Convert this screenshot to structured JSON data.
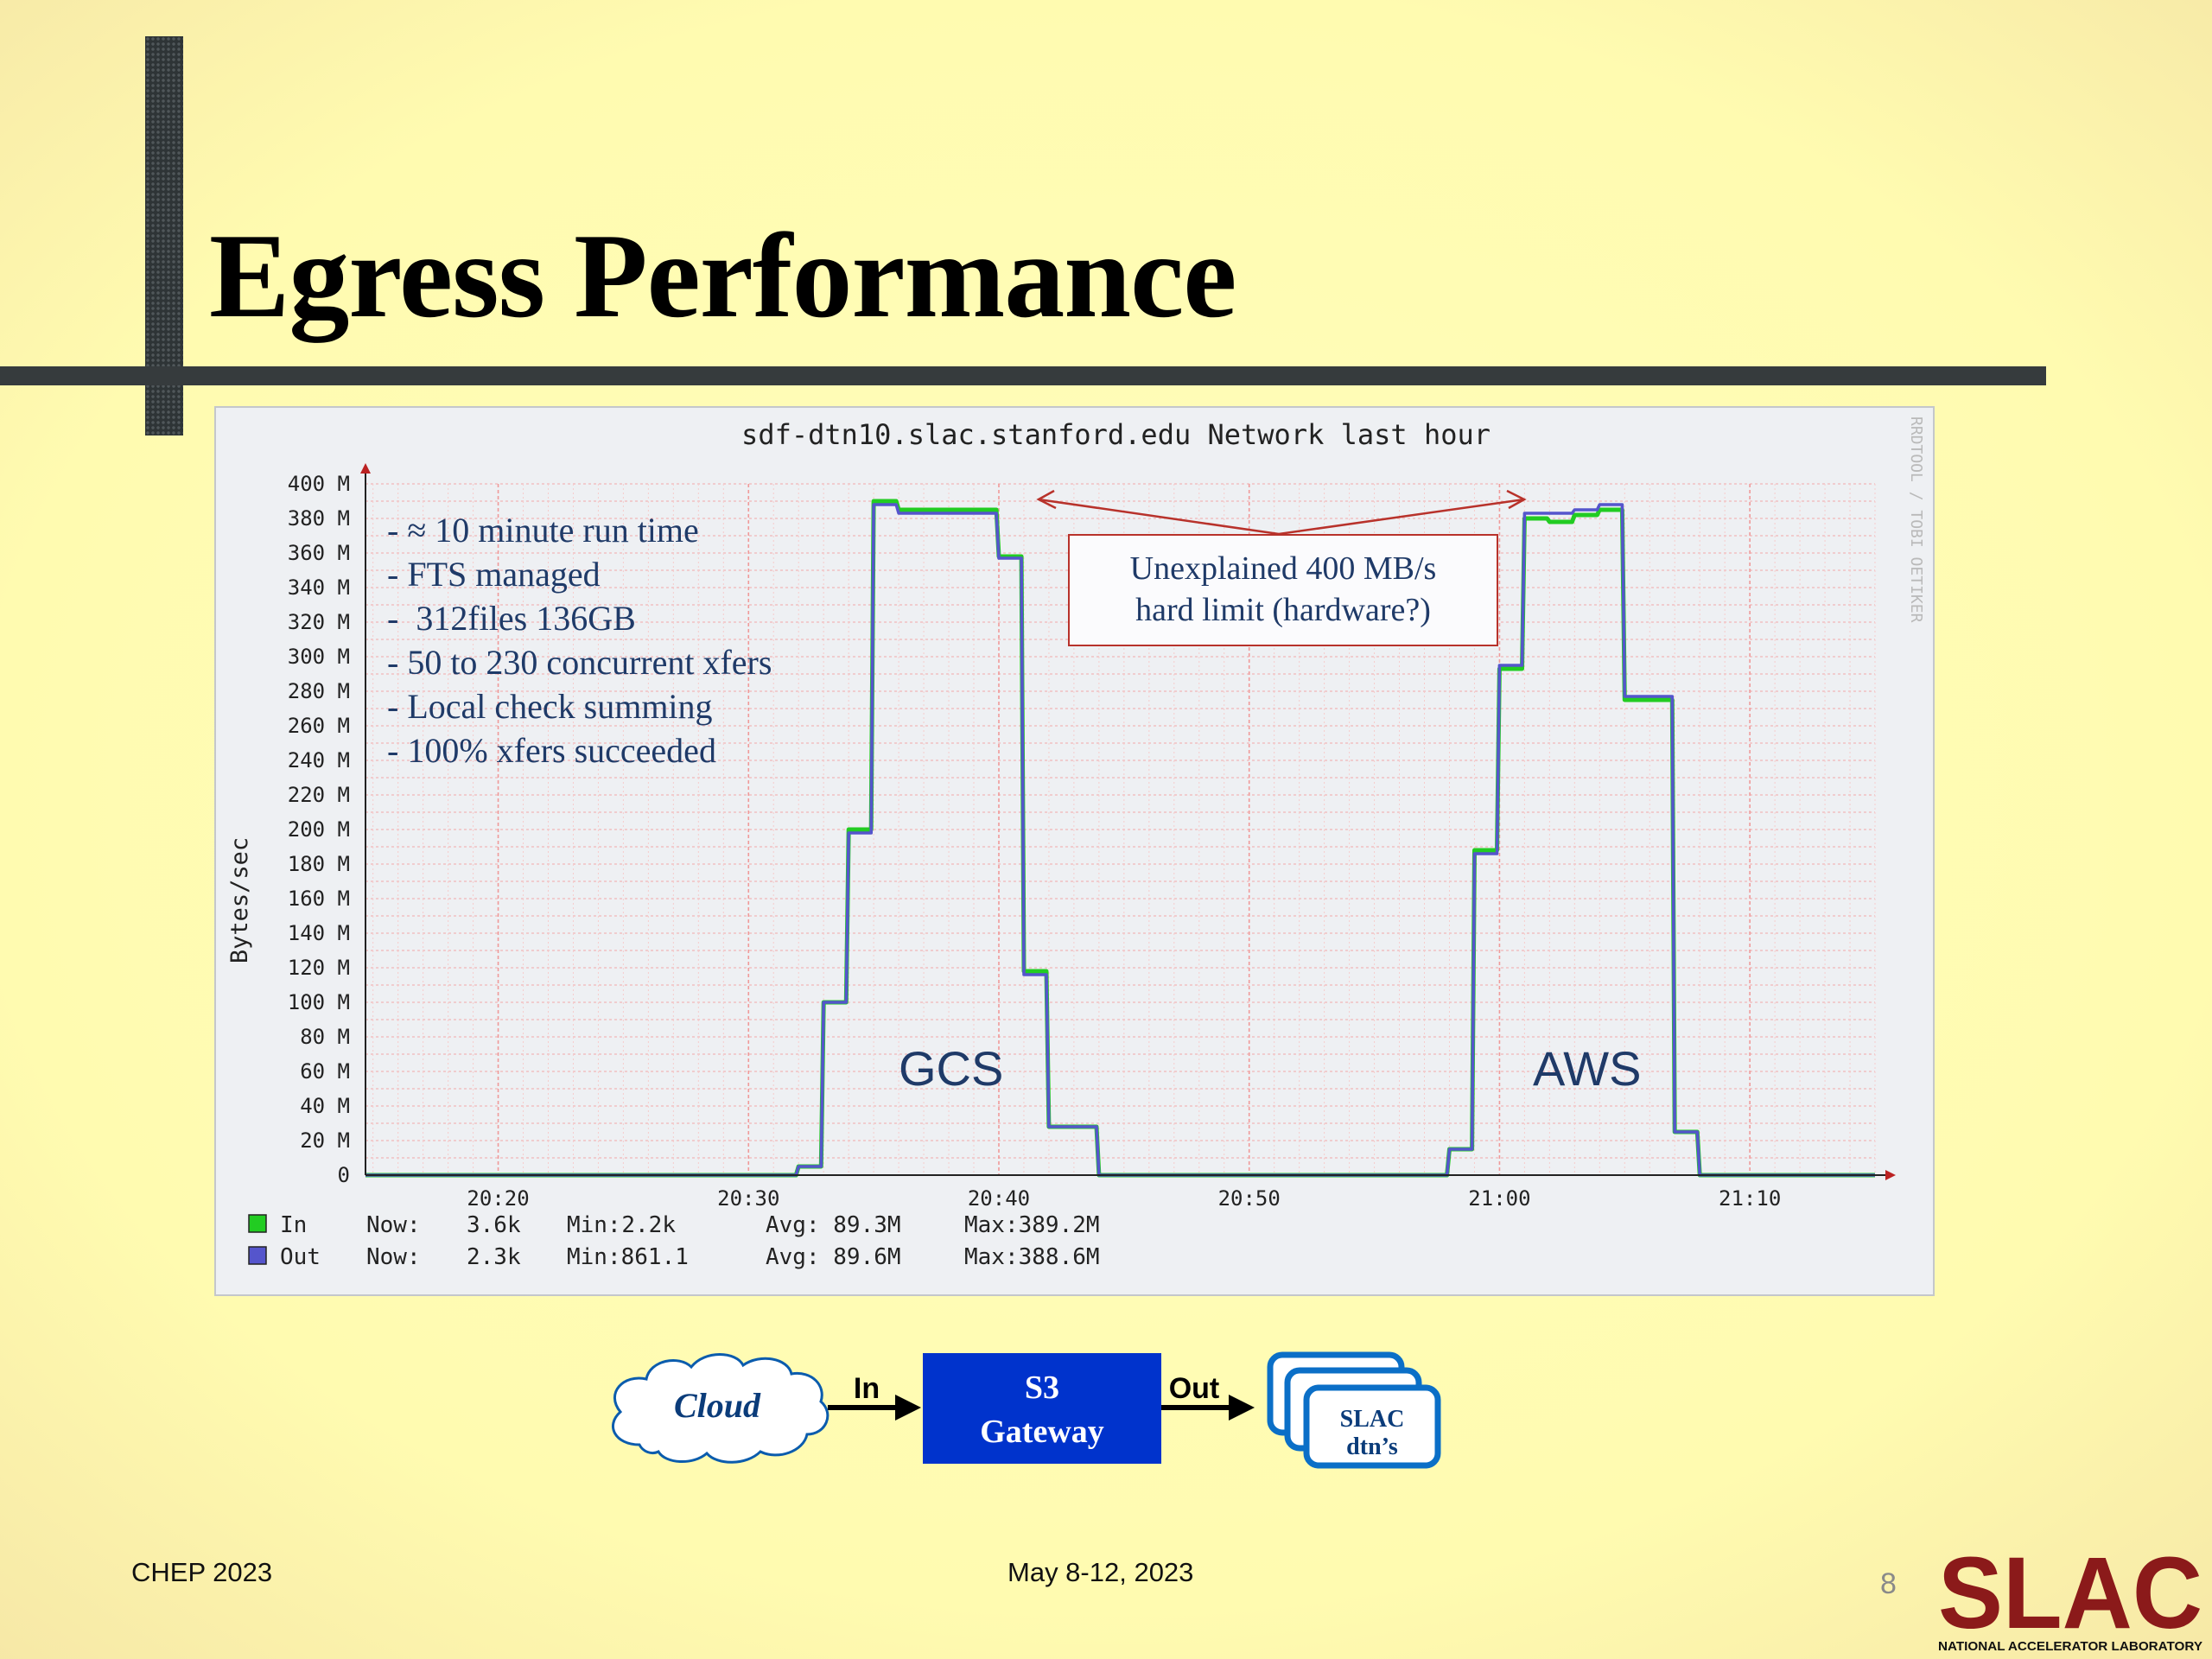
{
  "slide": {
    "title": "Egress Performance",
    "page_number": "8",
    "footer_left": "CHEP 2023",
    "footer_center": "May 8-12, 2023",
    "logo_text": "SLAC",
    "logo_subtext": "NATIONAL ACCELERATOR LABORATORY",
    "colors": {
      "background": "#fffbb0",
      "bar": "#363b3d",
      "annotation_text": "#1f3a68",
      "box_border": "#b8322b",
      "in_series": "#22cc22",
      "out_series": "#5555cc",
      "gateway": "#0033cc",
      "logo": "#8b1a1a"
    }
  },
  "annotations": {
    "notes": [
      "- ≈ 10 minute run time",
      "- FTS managed",
      "-  312files 136GB",
      "- 50 to 230 concurrent xfers",
      "- Local check summing",
      "- 100% xfers succeeded"
    ],
    "limit_line1": "Unexplained 400 MB/s",
    "limit_line2": "hard limit (hardware?)",
    "gcs_label": "GCS",
    "aws_label": "AWS"
  },
  "chart_data": {
    "type": "line",
    "title": "sdf-dtn10.slac.stanford.edu Network last hour",
    "ylabel": "Bytes/sec",
    "watermark": "RRDTOOL / TOBI OETIKER",
    "ylim": [
      0,
      400
    ],
    "y_unit": "M",
    "y_ticks": [
      "0",
      "20 M",
      "40 M",
      "60 M",
      "80 M",
      "100 M",
      "120 M",
      "140 M",
      "160 M",
      "180 M",
      "200 M",
      "220 M",
      "240 M",
      "260 M",
      "280 M",
      "300 M",
      "320 M",
      "340 M",
      "360 M",
      "380 M",
      "400 M"
    ],
    "x_ticks": [
      "20:20",
      "20:30",
      "20:40",
      "20:50",
      "21:00",
      "21:10"
    ],
    "xlim_minutes_after_2010": [
      4.7,
      65
    ],
    "x_tick_minutes_after_2010": [
      10,
      20,
      30,
      40,
      50,
      60
    ],
    "grid": true,
    "series": [
      {
        "name": "In",
        "x_minutes_after_2010": [
          4.7,
          21.9,
          22.0,
          22.9,
          23.0,
          23.9,
          24.0,
          24.9,
          25.0,
          25.9,
          26.0,
          29.9,
          30.0,
          30.9,
          31.0,
          31.9,
          32.0,
          33.9,
          34.0,
          47.9,
          48.0,
          48.9,
          49.0,
          49.9,
          50.0,
          50.9,
          51.0,
          51.9,
          52.0,
          52.9,
          53.0,
          53.9,
          54.0,
          54.9,
          55.0,
          56.9,
          57.0,
          57.9,
          58.0,
          65
        ],
        "y": [
          0,
          0,
          5,
          5,
          100,
          100,
          200,
          200,
          390,
          390,
          385,
          385,
          358,
          358,
          118,
          118,
          28,
          28,
          0,
          0,
          15,
          15,
          188,
          188,
          293,
          293,
          380,
          380,
          378,
          378,
          382,
          382,
          385,
          385,
          275,
          275,
          25,
          25,
          0,
          0
        ]
      },
      {
        "name": "Out",
        "x_minutes_after_2010": [
          4.7,
          21.9,
          22.0,
          22.9,
          23.0,
          23.9,
          24.0,
          24.9,
          25.0,
          25.9,
          26.0,
          29.9,
          30.0,
          30.9,
          31.0,
          31.9,
          32.0,
          33.9,
          34.0,
          47.9,
          48.0,
          48.9,
          49.0,
          49.9,
          50.0,
          50.9,
          51.0,
          51.9,
          52.0,
          52.9,
          53.0,
          53.9,
          54.0,
          54.9,
          55.0,
          56.9,
          57.0,
          57.9,
          58.0,
          65
        ],
        "y": [
          0,
          0,
          5,
          5,
          100,
          100,
          198,
          198,
          388,
          388,
          383,
          383,
          357,
          357,
          116,
          116,
          28,
          28,
          0,
          0,
          15,
          15,
          186,
          186,
          295,
          295,
          383,
          383,
          383,
          383,
          385,
          385,
          388,
          388,
          277,
          277,
          25,
          25,
          0,
          0
        ]
      }
    ],
    "legend": {
      "placement": "bottom-left",
      "rows": [
        {
          "name": "In",
          "now": "Now:",
          "now_val": "3.6k",
          "min": "Min:",
          "min_val": "2.2k",
          "avg": "Avg: 89.3M",
          "max": "Max:389.2M"
        },
        {
          "name": "Out",
          "now": "Now:",
          "now_val": "2.3k",
          "min": "Min:861.1",
          "min_val": "",
          "avg": "Avg: 89.6M",
          "max": "Max:388.6M"
        }
      ]
    }
  },
  "flow": {
    "cloud": "Cloud",
    "in": "In",
    "gateway_line1": "S3",
    "gateway_line2": "Gateway",
    "out": "Out",
    "dtn_line1": "SLAC",
    "dtn_line2": "dtn’s"
  }
}
